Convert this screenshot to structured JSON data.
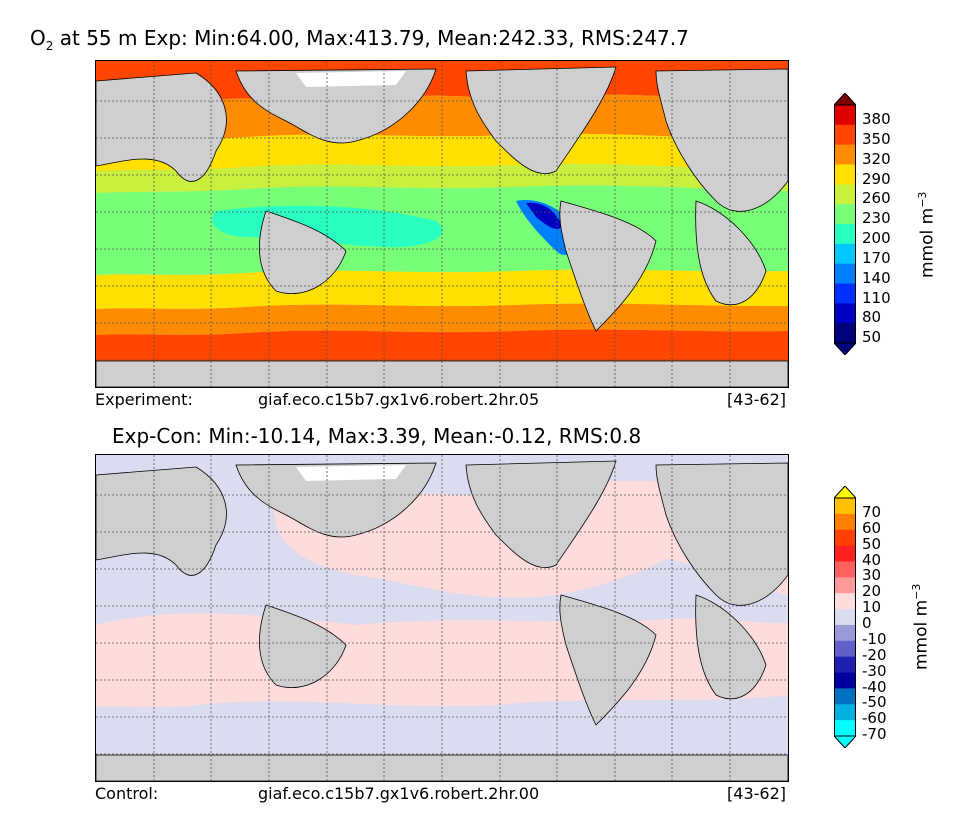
{
  "top_panel": {
    "title_prefix": "O",
    "title_sub": "2",
    "title_rest": " at 55 m Exp: Min:64.00, Max:413.79, Mean:242.33, RMS:247.7",
    "footer_left": "Experiment:",
    "footer_mid": "giaf.eco.c15b7.gx1v6.robert.2hr.05",
    "footer_right": "[43-62]",
    "colorbar": {
      "ticks": [
        "380",
        "350",
        "320",
        "290",
        "260",
        "230",
        "200",
        "170",
        "140",
        "110",
        "80",
        "50"
      ],
      "colors": [
        "#7a0000",
        "#e00000",
        "#ff4500",
        "#ff8c00",
        "#ffe000",
        "#c8f03c",
        "#78ff78",
        "#28ffc0",
        "#00c8ff",
        "#0080ff",
        "#0030ff",
        "#0000c0",
        "#00007a"
      ],
      "units_main": "mmol m",
      "units_exp": "−3"
    }
  },
  "bottom_panel": {
    "title": "Exp-Con: Min:-10.14, Max:3.39, Mean:-0.12, RMS:0.8",
    "footer_left": "Control:",
    "footer_mid": "giaf.eco.c15b7.gx1v6.robert.2hr.00",
    "footer_right": "[43-62]",
    "colorbar": {
      "ticks": [
        "70",
        "60",
        "50",
        "40",
        "30",
        "20",
        "10",
        "0",
        "-10",
        "-20",
        "-30",
        "-40",
        "-50",
        "-60",
        "-70"
      ],
      "colors": [
        "#ffff00",
        "#ffc000",
        "#ff8000",
        "#ff4000",
        "#ff2020",
        "#ff6060",
        "#ff9a9a",
        "#ffdcdc",
        "#dcdcf0",
        "#9a9ad8",
        "#6060c8",
        "#2020b0",
        "#0000a0",
        "#0070c0",
        "#00b0e0",
        "#00ffff"
      ],
      "units_main": "mmol m",
      "units_exp": "−3"
    }
  },
  "map_colors": {
    "land": "#cfcfcf",
    "sea_ice": "#ffffff",
    "diff_positive": "#ffdcdc",
    "diff_negative": "#dcdcf0"
  }
}
